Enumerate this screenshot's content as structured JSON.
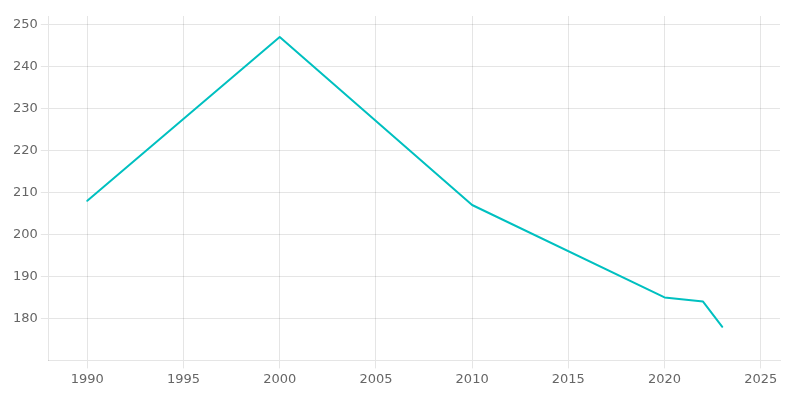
{
  "chart_data": {
    "type": "line",
    "x": [
      1990,
      2000,
      2010,
      2020,
      2022,
      2023
    ],
    "values": [
      208,
      247,
      207,
      185,
      184,
      178
    ],
    "color": "#00c0c0",
    "xlim": [
      1988,
      2026
    ],
    "ylim": [
      170,
      252
    ],
    "xticks": [
      1990,
      1995,
      2000,
      2005,
      2010,
      2015,
      2020,
      2025
    ],
    "yticks": [
      180,
      190,
      200,
      210,
      220,
      230,
      240,
      250
    ],
    "grid": true
  }
}
